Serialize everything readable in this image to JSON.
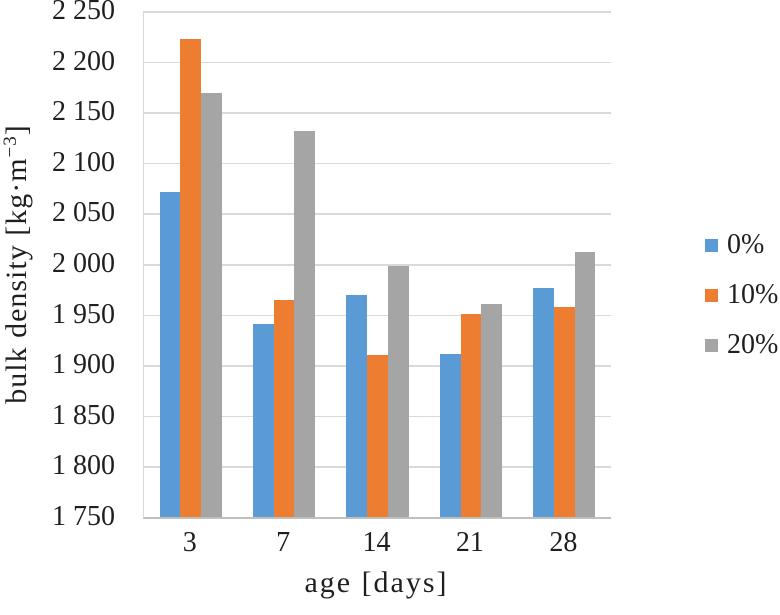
{
  "chart_data": {
    "type": "bar",
    "title": "",
    "xlabel": "age [days]",
    "ylabel_prefix": "bulk density [kg·m",
    "ylabel_sup": "−3",
    "ylabel_suffix": "]",
    "categories": [
      "3",
      "7",
      "14",
      "21",
      "28"
    ],
    "series": [
      {
        "name": "0%",
        "color": "#5B9BD5",
        "values": [
          2071,
          1941,
          1969,
          1911,
          1976
        ]
      },
      {
        "name": "10%",
        "color": "#ED7D31",
        "values": [
          2222,
          1964,
          1910,
          1951,
          1958
        ]
      },
      {
        "name": "20%",
        "color": "#A5A5A5",
        "values": [
          2169,
          2131,
          1998,
          1960,
          2012
        ]
      }
    ],
    "ylim": [
      1750,
      2250
    ],
    "ytick_step": 50,
    "ytick_labels": [
      "2 250",
      "2 200",
      "2 150",
      "2 100",
      "2 050",
      "2 000",
      "1 950",
      "1 900",
      "1 850",
      "1 800",
      "1 750"
    ],
    "grid": true,
    "legend_position": "right",
    "colors": {
      "gridline": "#D9D9D9",
      "axis_line": "#BFBFBF",
      "text": "#1F1F1F"
    }
  }
}
